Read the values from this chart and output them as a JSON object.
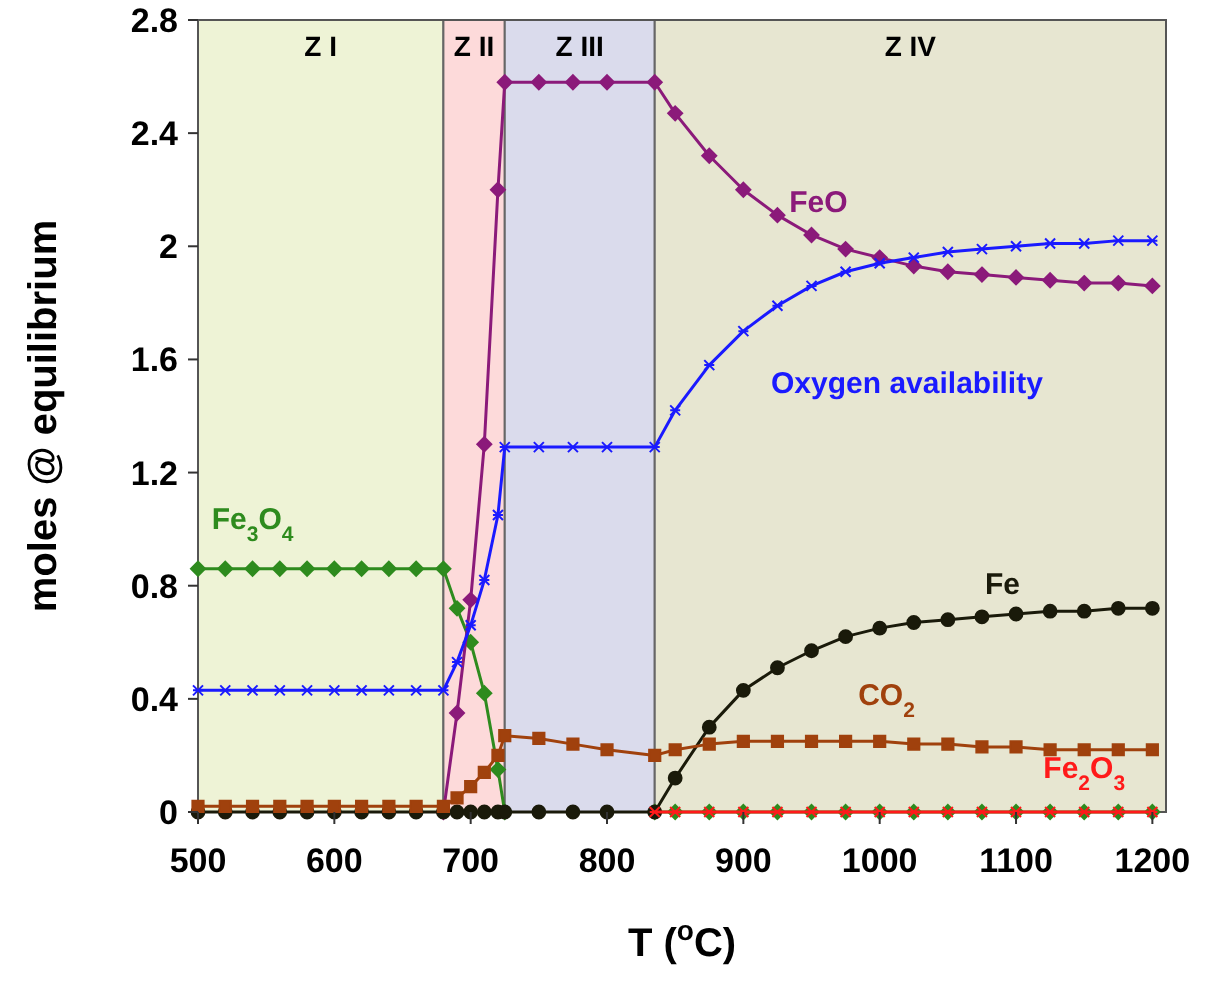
{
  "chart_data": {
    "type": "line",
    "xlabel": "T ($^{o}$C)",
    "ylabel": "moles @ equilibrium",
    "x": [
      500,
      520,
      540,
      560,
      580,
      600,
      620,
      640,
      660,
      680,
      690,
      700,
      710,
      720,
      725,
      750,
      775,
      800,
      835,
      850,
      875,
      900,
      925,
      950,
      975,
      1000,
      1025,
      1050,
      1075,
      1100,
      1125,
      1150,
      1175,
      1200
    ],
    "series": [
      {
        "name": "Fe$_{3}$O$_{4}$",
        "color": "#2e8b1e",
        "marker": "diamond",
        "values": [
          0.86,
          0.86,
          0.86,
          0.86,
          0.86,
          0.86,
          0.86,
          0.86,
          0.86,
          0.86,
          0.72,
          0.6,
          0.42,
          0.15,
          0,
          null,
          null,
          null,
          0,
          0,
          0,
          0,
          0,
          0,
          0,
          0,
          0,
          0,
          0,
          0,
          0,
          0,
          0,
          0
        ]
      },
      {
        "name": "FeO",
        "color": "#8b1a7a",
        "marker": "diamond",
        "values": [
          null,
          null,
          null,
          null,
          null,
          null,
          null,
          null,
          null,
          0,
          0.35,
          0.75,
          1.3,
          2.2,
          2.58,
          2.58,
          2.58,
          2.58,
          2.58,
          2.47,
          2.32,
          2.2,
          2.11,
          2.04,
          1.99,
          1.96,
          1.93,
          1.91,
          1.9,
          1.89,
          1.88,
          1.87,
          1.87,
          1.86
        ]
      },
      {
        "name": "Oxygen availability",
        "color": "#1a1aff",
        "marker": "cross",
        "values": [
          0.43,
          0.43,
          0.43,
          0.43,
          0.43,
          0.43,
          0.43,
          0.43,
          0.43,
          0.43,
          0.53,
          0.66,
          0.82,
          1.05,
          1.29,
          1.29,
          1.29,
          1.29,
          1.29,
          1.42,
          1.58,
          1.7,
          1.79,
          1.86,
          1.91,
          1.94,
          1.96,
          1.98,
          1.99,
          2.0,
          2.01,
          2.01,
          2.02,
          2.02
        ]
      },
      {
        "name": "Fe",
        "color": "#1a1a0a",
        "marker": "circle",
        "values": [
          0,
          0,
          0,
          0,
          0,
          0,
          0,
          0,
          0,
          0,
          0,
          0,
          0,
          0,
          0,
          0,
          0,
          0,
          0,
          0.12,
          0.3,
          0.43,
          0.51,
          0.57,
          0.62,
          0.65,
          0.67,
          0.68,
          0.69,
          0.7,
          0.71,
          0.71,
          0.72,
          0.72
        ]
      },
      {
        "name": "CO$_{2}$",
        "color": "#a0410d",
        "marker": "square",
        "values": [
          0.02,
          0.02,
          0.02,
          0.02,
          0.02,
          0.02,
          0.02,
          0.02,
          0.02,
          0.02,
          0.05,
          0.09,
          0.14,
          0.2,
          0.27,
          0.26,
          0.24,
          0.22,
          0.2,
          0.22,
          0.24,
          0.25,
          0.25,
          0.25,
          0.25,
          0.25,
          0.24,
          0.24,
          0.23,
          0.23,
          0.22,
          0.22,
          0.22,
          0.22
        ]
      },
      {
        "name": "Fe$_{2}$O$_{3}$",
        "color": "#ff1a1a",
        "marker": "cross",
        "values": [
          null,
          null,
          null,
          null,
          null,
          null,
          null,
          null,
          null,
          null,
          null,
          null,
          null,
          null,
          null,
          null,
          null,
          null,
          0,
          0,
          0,
          0,
          0,
          0,
          0,
          0,
          0,
          0,
          0,
          0,
          0,
          0,
          0,
          0
        ]
      }
    ],
    "bands": [
      {
        "axis": "x",
        "from": 500,
        "to": 680,
        "label": "Z I",
        "color": "#eef3d6"
      },
      {
        "axis": "x",
        "from": 680,
        "to": 725,
        "label": "Z II",
        "color": "#fddada"
      },
      {
        "axis": "x",
        "from": 725,
        "to": 835,
        "label": "Z III",
        "color": "#dadbec"
      },
      {
        "axis": "x",
        "from": 835,
        "to": 1210,
        "label": "Z IV",
        "color": "#e7e6d1"
      }
    ],
    "xlim": [
      500,
      1210
    ],
    "xticks": [
      500,
      600,
      700,
      800,
      900,
      1000,
      1100,
      1200
    ],
    "ylim": [
      0,
      2.8
    ],
    "yticks": [
      0,
      0.4,
      0.8,
      1.2,
      1.6,
      2,
      2.4,
      2.8
    ],
    "grid": false,
    "line_style": "solid"
  }
}
